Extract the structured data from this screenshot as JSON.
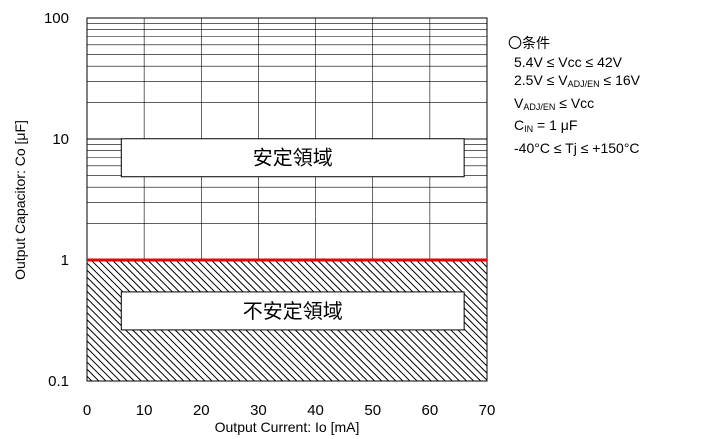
{
  "chart_data": {
    "type": "area",
    "xlabel": "Output Current: Io [mA]",
    "ylabel": "Output Capacitor: Co [μF]",
    "xlim": [
      0,
      70
    ],
    "ylim": [
      0.1,
      100
    ],
    "yscale": "log",
    "grid": true,
    "x_ticks": [
      "0",
      "10",
      "20",
      "30",
      "40",
      "50",
      "60",
      "70"
    ],
    "y_ticks": [
      "0.1",
      "1",
      "10",
      "100"
    ],
    "boundary": {
      "y": 1,
      "color": "#e60000"
    },
    "regions": [
      {
        "label": "安定領域",
        "y_range": [
          1,
          100
        ],
        "fill": "none"
      },
      {
        "label": "不安定領域",
        "y_range": [
          0.1,
          1
        ],
        "fill": "hatched"
      }
    ]
  },
  "conditions": {
    "title": "〇条件",
    "lines": [
      {
        "main": "5.4V ≤ Vcc ≤ 42V"
      },
      {
        "pre": "2.5V ≤ V",
        "sub": "ADJ/EN",
        "post": " ≤ 16V"
      },
      {
        "pre": "V",
        "sub": "ADJ/EN",
        "post": " ≤ Vcc"
      },
      {
        "pre": "C",
        "sub": "IN",
        "post": " = 1 μF"
      },
      {
        "main": "-40°C ≤ Tj ≤ +150°C"
      }
    ]
  }
}
